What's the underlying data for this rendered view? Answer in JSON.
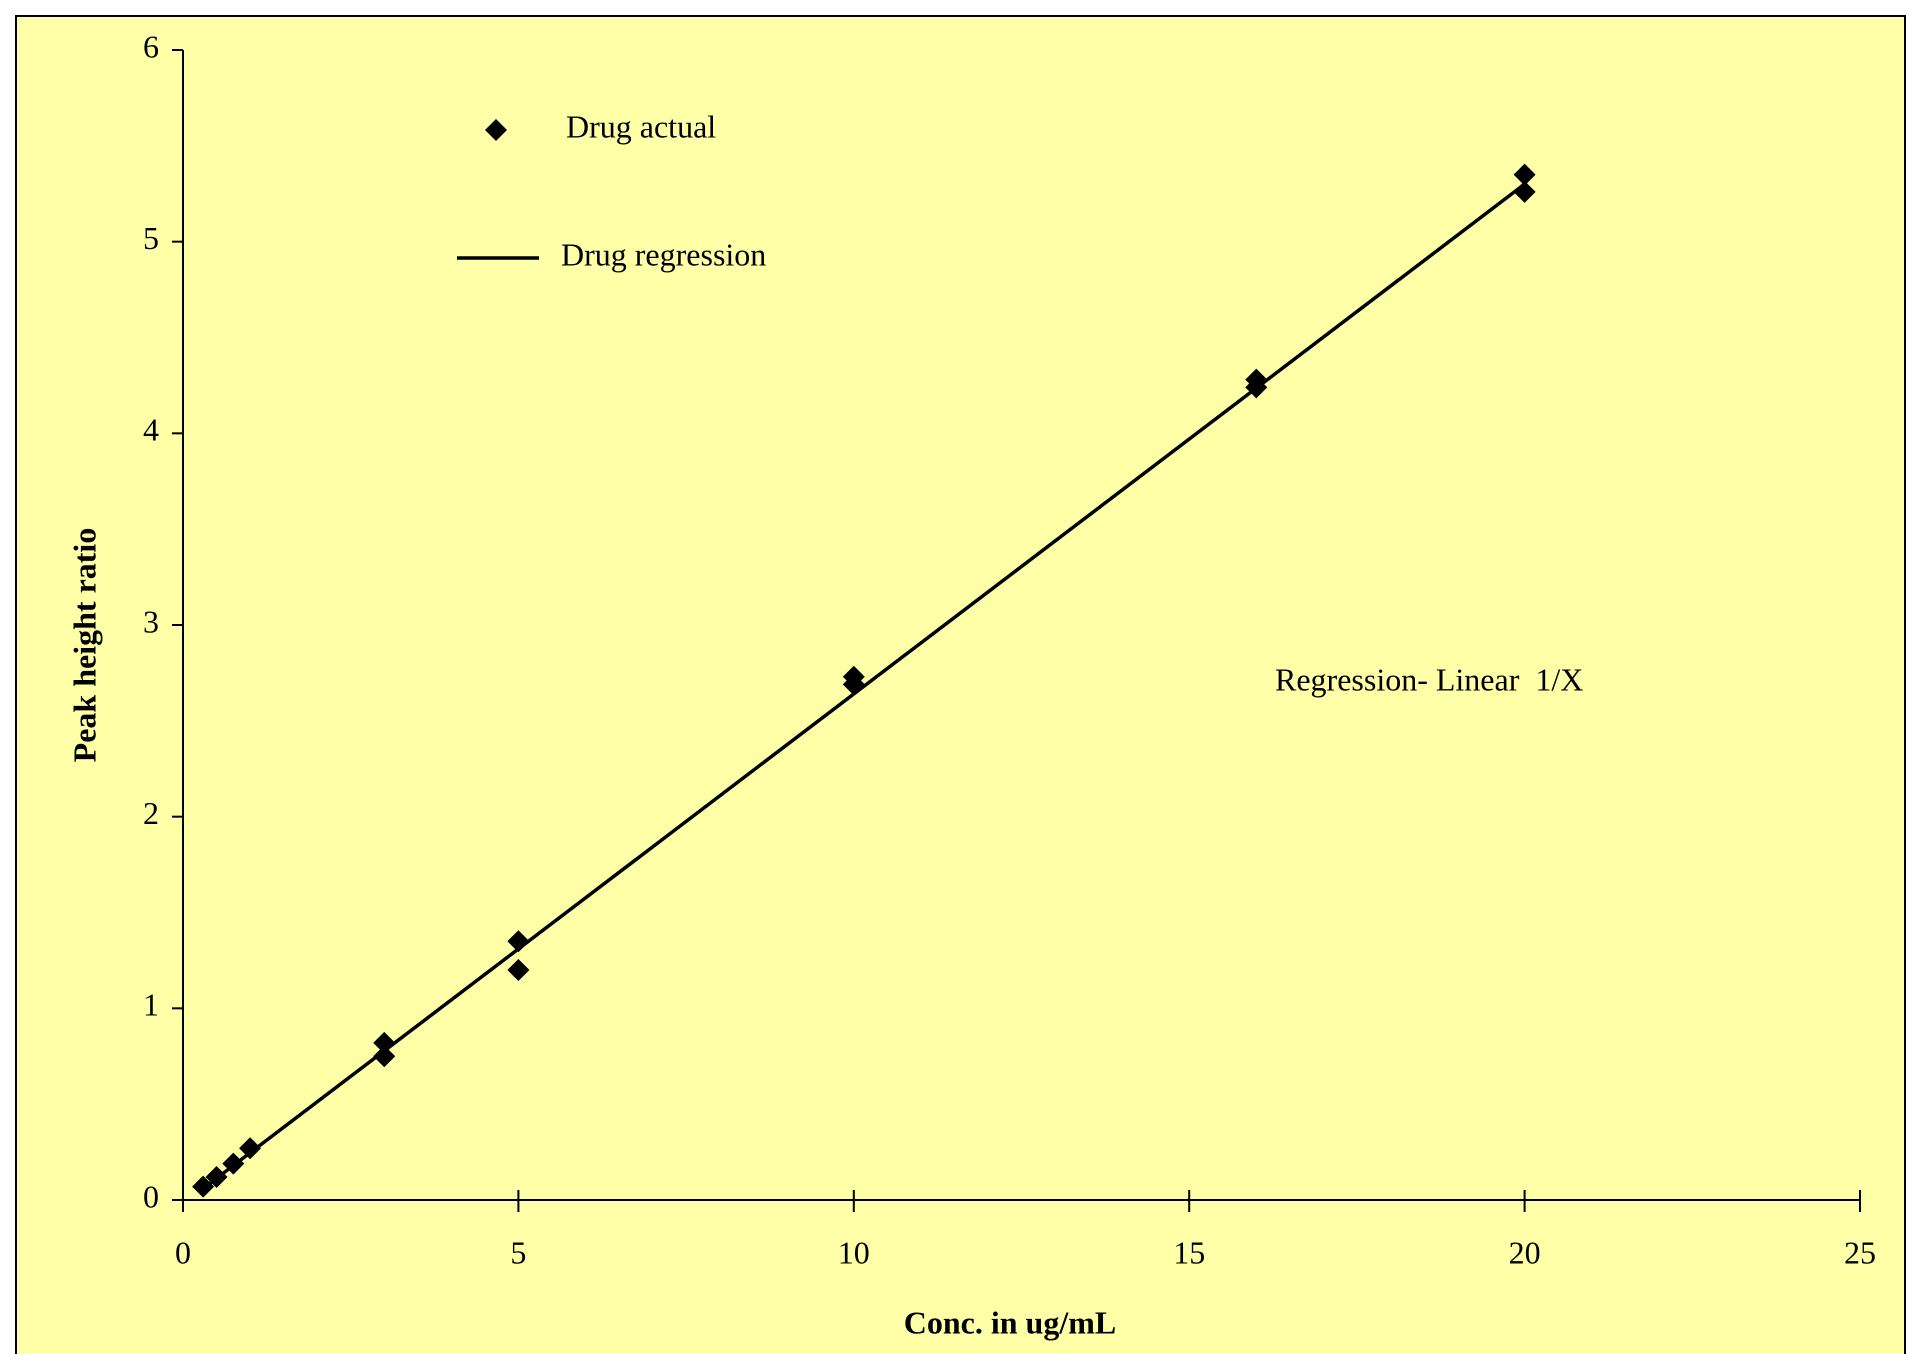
{
  "chart_data": {
    "type": "scatter",
    "x_label": "Conc. in ug/mL",
    "y_label": "Peak height ratio",
    "annotations": [
      "Regression- Linear  1/X"
    ],
    "xlim": [
      0,
      25
    ],
    "xticks": [
      0,
      5,
      10,
      15,
      20,
      25
    ],
    "ylim": [
      0,
      6
    ],
    "yticks": [
      0,
      1,
      2,
      3,
      4,
      5,
      6
    ],
    "background": "#ffffa8",
    "series": [
      {
        "name": "Drug actual",
        "style": "marker",
        "color": "#000000",
        "x": [
          0.3,
          0.5,
          0.75,
          1,
          3,
          3,
          5,
          5,
          10,
          10,
          16,
          16,
          20,
          20
        ],
        "values": [
          0.07,
          0.12,
          0.19,
          0.27,
          0.82,
          0.75,
          1.35,
          1.2,
          2.73,
          2.69,
          4.28,
          4.24,
          5.35,
          5.26
        ]
      },
      {
        "name": "Drug regression",
        "style": "line",
        "color": "#000000",
        "x": [
          0.3,
          20
        ],
        "values": [
          0.06,
          5.3
        ]
      }
    ]
  }
}
